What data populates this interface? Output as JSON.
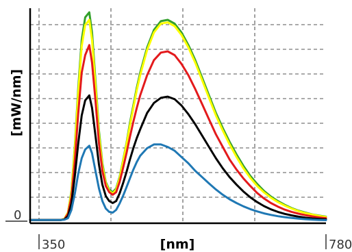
{
  "chart_data": {
    "type": "line",
    "xlabel": "[nm]",
    "ylabel": "[mW/nm]",
    "x_ticks": [
      "350",
      "780"
    ],
    "y_ticks": [
      "0"
    ],
    "xlim": [
      350,
      780
    ],
    "ylim": [
      0,
      8.3
    ],
    "grid": true,
    "series": [
      {
        "color": "#33a02c",
        "x": [
          350,
          395,
          400,
          405,
          410,
          415,
          420,
          425,
          430,
          436,
          440,
          445,
          450,
          455,
          460,
          465,
          470,
          475,
          480,
          485,
          490,
          495,
          500,
          505,
          510,
          520,
          530,
          540,
          550,
          560,
          570,
          580,
          590,
          600,
          610,
          620,
          630,
          640,
          650,
          660,
          670,
          680,
          690,
          700,
          710,
          720,
          730,
          740,
          750,
          760,
          770,
          780
        ],
        "y": [
          0.05,
          0.05,
          0.1,
          0.35,
          1.2,
          3.0,
          5.3,
          7.2,
          8.1,
          8.3,
          7.5,
          5.6,
          3.6,
          2.3,
          1.55,
          1.25,
          1.15,
          1.3,
          1.75,
          2.4,
          3.1,
          3.9,
          4.6,
          5.3,
          5.9,
          6.9,
          7.6,
          7.95,
          8.0,
          7.85,
          7.5,
          7.0,
          6.4,
          5.7,
          5.0,
          4.3,
          3.7,
          3.15,
          2.65,
          2.2,
          1.8,
          1.48,
          1.2,
          0.98,
          0.8,
          0.65,
          0.52,
          0.42,
          0.34,
          0.27,
          0.22,
          0.18
        ]
      },
      {
        "color": "#ffff00",
        "x": [
          350,
          395,
          400,
          405,
          410,
          415,
          420,
          425,
          430,
          436,
          440,
          445,
          450,
          455,
          460,
          465,
          470,
          475,
          480,
          485,
          490,
          495,
          500,
          505,
          510,
          520,
          530,
          540,
          550,
          560,
          570,
          580,
          590,
          600,
          610,
          620,
          630,
          640,
          650,
          660,
          670,
          680,
          690,
          700,
          710,
          720,
          730,
          740,
          750,
          760,
          770,
          780
        ],
        "y": [
          0.05,
          0.05,
          0.1,
          0.35,
          1.15,
          2.9,
          5.1,
          6.95,
          7.8,
          8.0,
          7.2,
          5.4,
          3.45,
          2.2,
          1.5,
          1.2,
          1.1,
          1.25,
          1.7,
          2.35,
          3.05,
          3.8,
          4.5,
          5.2,
          5.8,
          6.8,
          7.5,
          7.85,
          7.9,
          7.75,
          7.4,
          6.9,
          6.3,
          5.6,
          4.9,
          4.2,
          3.6,
          3.05,
          2.55,
          2.1,
          1.72,
          1.4,
          1.14,
          0.93,
          0.76,
          0.62,
          0.5,
          0.4,
          0.32,
          0.26,
          0.21,
          0.17
        ]
      },
      {
        "color": "#e31a1c",
        "x": [
          350,
          395,
          400,
          405,
          410,
          415,
          420,
          425,
          430,
          436,
          440,
          445,
          450,
          455,
          460,
          465,
          470,
          475,
          480,
          485,
          490,
          495,
          500,
          505,
          510,
          520,
          530,
          540,
          550,
          560,
          570,
          580,
          590,
          600,
          610,
          620,
          630,
          640,
          650,
          660,
          670,
          680,
          690,
          700,
          710,
          720,
          730,
          740,
          750,
          760,
          770,
          780
        ],
        "y": [
          0.05,
          0.05,
          0.08,
          0.3,
          0.95,
          2.4,
          4.3,
          5.9,
          6.6,
          7.0,
          6.3,
          4.8,
          3.1,
          2.0,
          1.4,
          1.15,
          1.05,
          1.15,
          1.55,
          2.1,
          2.7,
          3.35,
          3.95,
          4.5,
          5.0,
          5.8,
          6.4,
          6.7,
          6.75,
          6.6,
          6.25,
          5.8,
          5.25,
          4.65,
          4.05,
          3.45,
          2.95,
          2.45,
          2.05,
          1.7,
          1.4,
          1.12,
          0.9,
          0.72,
          0.58,
          0.46,
          0.37,
          0.3,
          0.24,
          0.19,
          0.15,
          0.12
        ]
      },
      {
        "color": "#000000",
        "x": [
          350,
          395,
          400,
          405,
          410,
          415,
          420,
          425,
          430,
          436,
          440,
          445,
          450,
          455,
          460,
          465,
          470,
          475,
          480,
          485,
          490,
          495,
          500,
          505,
          510,
          520,
          530,
          540,
          550,
          560,
          570,
          580,
          590,
          600,
          610,
          620,
          630,
          640,
          650,
          660,
          670,
          680,
          690,
          700,
          710,
          720,
          730,
          740,
          750,
          760,
          770,
          780
        ],
        "y": [
          0.05,
          0.05,
          0.07,
          0.2,
          0.7,
          1.8,
          3.1,
          4.2,
          4.8,
          5.0,
          4.5,
          3.4,
          2.25,
          1.45,
          1.0,
          0.8,
          0.72,
          0.8,
          1.1,
          1.5,
          1.95,
          2.45,
          2.9,
          3.3,
          3.65,
          4.3,
          4.7,
          4.9,
          4.95,
          4.85,
          4.6,
          4.25,
          3.85,
          3.4,
          2.95,
          2.5,
          2.1,
          1.75,
          1.45,
          1.18,
          0.95,
          0.76,
          0.6,
          0.47,
          0.37,
          0.29,
          0.23,
          0.18,
          0.14,
          0.11,
          0.09,
          0.07
        ]
      },
      {
        "color": "#1f78b4",
        "x": [
          350,
          395,
          400,
          405,
          410,
          415,
          420,
          425,
          430,
          436,
          440,
          445,
          450,
          455,
          460,
          465,
          470,
          475,
          480,
          485,
          490,
          495,
          500,
          505,
          510,
          520,
          530,
          540,
          550,
          560,
          570,
          580,
          590,
          600,
          610,
          620,
          630,
          640,
          650,
          660,
          670,
          680,
          690,
          700,
          710,
          720,
          730,
          740,
          750,
          760,
          770,
          780
        ],
        "y": [
          0.05,
          0.05,
          0.06,
          0.12,
          0.45,
          1.1,
          1.9,
          2.5,
          2.85,
          3.0,
          2.7,
          2.0,
          1.3,
          0.8,
          0.5,
          0.37,
          0.34,
          0.45,
          0.7,
          1.0,
          1.35,
          1.7,
          2.05,
          2.35,
          2.6,
          2.9,
          3.05,
          3.05,
          2.95,
          2.8,
          2.55,
          2.3,
          2.0,
          1.75,
          1.5,
          1.26,
          1.05,
          0.87,
          0.72,
          0.59,
          0.48,
          0.39,
          0.31,
          0.25,
          0.2,
          0.16,
          0.13,
          0.1,
          0.08,
          0.06,
          0.05,
          0.04
        ]
      }
    ]
  }
}
